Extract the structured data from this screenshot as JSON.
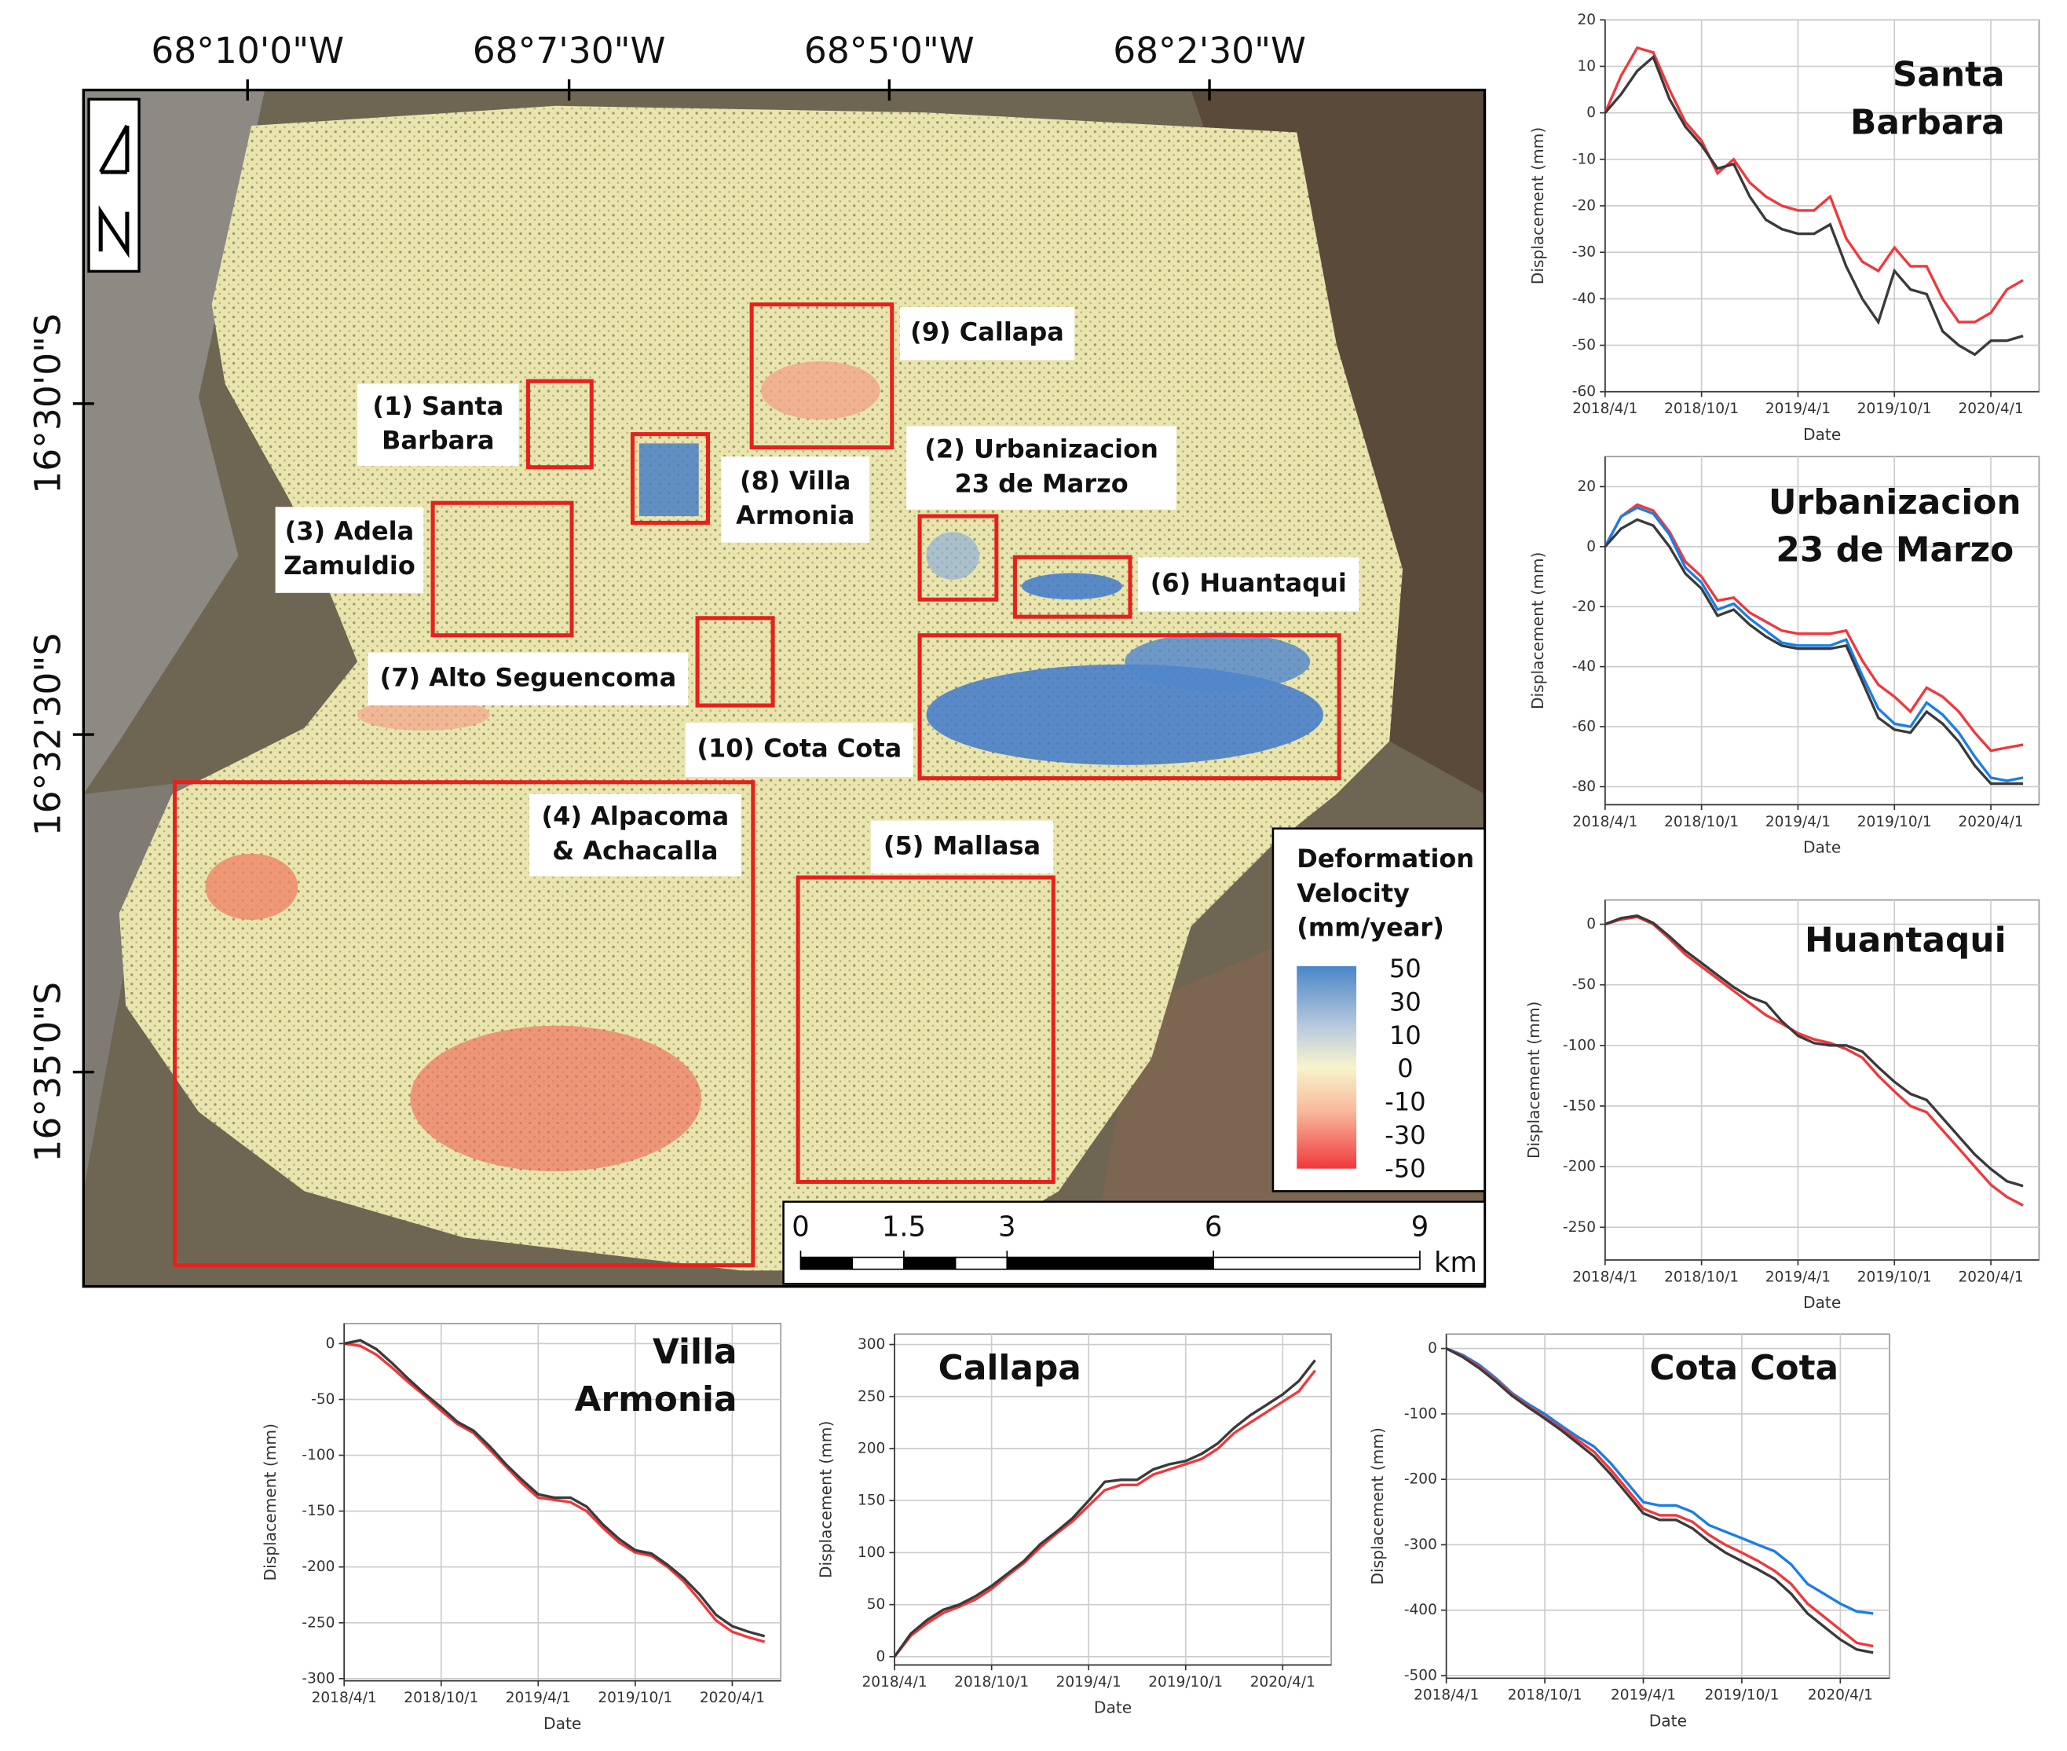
{
  "map": {
    "longitude_labels": [
      "68°10'0\"W",
      "68°7'30\"W",
      "68°5'0\"W",
      "68°2'30\"W"
    ],
    "latitude_labels": [
      "16°30'0\"S",
      "16°32'30\"S",
      "16°35'0\"S"
    ],
    "areas": [
      {
        "label": [
          "(1) Santa",
          "Barbara"
        ]
      },
      {
        "label": [
          "(8) Villa",
          "Armonia"
        ]
      },
      {
        "label": [
          "(9) Callapa"
        ]
      },
      {
        "label": [
          "(2) Urbanizacion",
          "23 de Marzo"
        ]
      },
      {
        "label": [
          "(3) Adela",
          "Zamuldio"
        ]
      },
      {
        "label": [
          "(6) Huantaqui"
        ]
      },
      {
        "label": [
          "(7) Alto Seguencoma"
        ]
      },
      {
        "label": [
          "(10) Cota Cota"
        ]
      },
      {
        "label": [
          "(4) Alpacoma",
          "& Achacalla"
        ]
      },
      {
        "label": [
          "(5) Mallasa"
        ]
      }
    ],
    "legend": {
      "title": [
        "Deformation",
        "Velocity",
        "(mm/year)"
      ],
      "ticks": [
        50,
        30,
        10,
        0,
        -10,
        -30,
        -50
      ]
    },
    "scale_bar": {
      "ticks": [
        0,
        1.5,
        3,
        6,
        9
      ],
      "lim": [
        0,
        9
      ],
      "unit": "km"
    }
  },
  "chart_data": [
    {
      "type": "line",
      "title": [
        "Santa",
        "Barbara"
      ],
      "x_label": "Date",
      "y_label": "Displacement (mm)",
      "x": [
        "2018/4/1",
        "2018/5/1",
        "2018/6/1",
        "2018/7/1",
        "2018/8/1",
        "2018/9/1",
        "2018/10/1",
        "2018/11/1",
        "2018/12/1",
        "2019/1/1",
        "2019/2/1",
        "2019/3/1",
        "2019/4/1",
        "2019/5/1",
        "2019/6/1",
        "2019/7/1",
        "2019/8/1",
        "2019/9/1",
        "2019/10/1",
        "2019/11/1",
        "2019/12/1",
        "2020/1/1",
        "2020/2/1",
        "2020/3/1",
        "2020/4/1",
        "2020/5/1",
        "2020/6/1"
      ],
      "xlim": [
        "2018/4/1",
        "2020/7/1"
      ],
      "xticks": [
        "2018/4/1",
        "2018/10/1",
        "2019/4/1",
        "2019/10/1",
        "2020/4/1"
      ],
      "ylim": [
        -60,
        20
      ],
      "yticks": [
        -60,
        -50,
        -40,
        -30,
        -20,
        -10,
        0,
        10,
        20
      ],
      "grid": true,
      "series": [
        {
          "color": "#f0383c",
          "values": [
            0,
            8,
            14,
            13,
            5,
            -2,
            -6,
            -13,
            -10,
            -15,
            -18,
            -20,
            -21,
            -21,
            -18,
            -27,
            -32,
            -34,
            -29,
            -33,
            -33,
            -40,
            -45,
            -45,
            -43,
            -38,
            -36
          ]
        },
        {
          "color": "#3a3a3a",
          "values": [
            0,
            4,
            9,
            12,
            3,
            -3,
            -7,
            -12,
            -11,
            -18,
            -23,
            -25,
            -26,
            -26,
            -24,
            -33,
            -40,
            -45,
            -34,
            -38,
            -39,
            -47,
            -50,
            -52,
            -49,
            -49,
            -48
          ]
        }
      ]
    },
    {
      "type": "line",
      "title": [
        "Urbanizacion",
        "23 de Marzo"
      ],
      "x_label": "Date",
      "y_label": "Displacement (mm)",
      "x": [
        "2018/4/1",
        "2018/5/1",
        "2018/6/1",
        "2018/7/1",
        "2018/8/1",
        "2018/9/1",
        "2018/10/1",
        "2018/11/1",
        "2018/12/1",
        "2019/1/1",
        "2019/2/1",
        "2019/3/1",
        "2019/4/1",
        "2019/5/1",
        "2019/6/1",
        "2019/7/1",
        "2019/8/1",
        "2019/9/1",
        "2019/10/1",
        "2019/11/1",
        "2019/12/1",
        "2020/1/1",
        "2020/2/1",
        "2020/3/1",
        "2020/4/1",
        "2020/5/1",
        "2020/6/1"
      ],
      "xlim": [
        "2018/4/1",
        "2020/7/1"
      ],
      "xticks": [
        "2018/4/1",
        "2018/10/1",
        "2019/4/1",
        "2019/10/1",
        "2020/4/1"
      ],
      "ylim": [
        -86,
        30
      ],
      "yticks": [
        -80,
        -60,
        -40,
        -20,
        0,
        20
      ],
      "grid": true,
      "series": [
        {
          "color": "#f0383c",
          "values": [
            0,
            10,
            14,
            12,
            5,
            -5,
            -10,
            -18,
            -17,
            -22,
            -25,
            -28,
            -29,
            -29,
            -29,
            -28,
            -38,
            -46,
            -50,
            -55,
            -47,
            -50,
            -55,
            -62,
            -68,
            -67,
            -66
          ]
        },
        {
          "color": "#1a7ee6",
          "values": [
            0,
            10,
            13,
            11,
            4,
            -7,
            -12,
            -21,
            -19,
            -24,
            -28,
            -32,
            -33,
            -33,
            -33,
            -31,
            -43,
            -54,
            -59,
            -60,
            -52,
            -56,
            -62,
            -70,
            -77,
            -78,
            -77
          ]
        },
        {
          "color": "#3a3a3a",
          "values": [
            0,
            6,
            9,
            7,
            0,
            -9,
            -14,
            -23,
            -21,
            -26,
            -30,
            -33,
            -34,
            -34,
            -34,
            -33,
            -45,
            -57,
            -61,
            -62,
            -55,
            -59,
            -65,
            -73,
            -79,
            -79,
            -79
          ]
        }
      ]
    },
    {
      "type": "line",
      "title": [
        "Huantaqui"
      ],
      "x_label": "Date",
      "y_label": "Displacement (mm)",
      "x": [
        "2018/4/1",
        "2018/5/1",
        "2018/6/1",
        "2018/7/1",
        "2018/8/1",
        "2018/9/1",
        "2018/10/1",
        "2018/11/1",
        "2018/12/1",
        "2019/1/1",
        "2019/2/1",
        "2019/3/1",
        "2019/4/1",
        "2019/5/1",
        "2019/6/1",
        "2019/7/1",
        "2019/8/1",
        "2019/9/1",
        "2019/10/1",
        "2019/11/1",
        "2019/12/1",
        "2020/1/1",
        "2020/2/1",
        "2020/3/1",
        "2020/4/1",
        "2020/5/1",
        "2020/6/1"
      ],
      "xlim": [
        "2018/4/1",
        "2020/7/1"
      ],
      "xticks": [
        "2018/4/1",
        "2018/10/1",
        "2019/4/1",
        "2019/10/1",
        "2020/4/1"
      ],
      "ylim": [
        -277,
        20
      ],
      "yticks": [
        -250,
        -200,
        -150,
        -100,
        -50,
        0
      ],
      "grid": true,
      "series": [
        {
          "color": "#f0383c",
          "values": [
            0,
            4,
            6,
            0,
            -12,
            -25,
            -35,
            -45,
            -55,
            -65,
            -75,
            -82,
            -90,
            -95,
            -98,
            -103,
            -110,
            -125,
            -138,
            -150,
            -155,
            -170,
            -185,
            -200,
            -215,
            -225,
            -232
          ]
        },
        {
          "color": "#3a3a3a",
          "values": [
            0,
            5,
            7,
            1,
            -10,
            -22,
            -32,
            -42,
            -52,
            -60,
            -65,
            -80,
            -92,
            -98,
            -100,
            -100,
            -105,
            -118,
            -130,
            -140,
            -145,
            -160,
            -175,
            -190,
            -202,
            -212,
            -216
          ]
        }
      ]
    },
    {
      "type": "line",
      "title": [
        "Villa",
        "Armonia"
      ],
      "x_label": "Date",
      "y_label": "Displacement (mm)",
      "x": [
        "2018/4/1",
        "2018/5/1",
        "2018/6/1",
        "2018/7/1",
        "2018/8/1",
        "2018/9/1",
        "2018/10/1",
        "2018/11/1",
        "2018/12/1",
        "2019/1/1",
        "2019/2/1",
        "2019/3/1",
        "2019/4/1",
        "2019/5/1",
        "2019/6/1",
        "2019/7/1",
        "2019/8/1",
        "2019/9/1",
        "2019/10/1",
        "2019/11/1",
        "2019/12/1",
        "2020/1/1",
        "2020/2/1",
        "2020/3/1",
        "2020/4/1",
        "2020/5/1",
        "2020/6/1"
      ],
      "xlim": [
        "2018/4/1",
        "2020/7/1"
      ],
      "xticks": [
        "2018/4/1",
        "2018/10/1",
        "2019/4/1",
        "2019/10/1",
        "2020/4/1"
      ],
      "ylim": [
        -302,
        18
      ],
      "yticks": [
        -300,
        -250,
        -200,
        -150,
        -100,
        -50,
        0
      ],
      "grid": true,
      "series": [
        {
          "color": "#f0383c",
          "values": [
            0,
            -2,
            -10,
            -22,
            -35,
            -47,
            -60,
            -72,
            -80,
            -95,
            -110,
            -125,
            -138,
            -140,
            -142,
            -150,
            -165,
            -178,
            -187,
            -190,
            -200,
            -213,
            -230,
            -248,
            -258,
            -263,
            -267
          ]
        },
        {
          "color": "#3a3a3a",
          "values": [
            0,
            3,
            -5,
            -18,
            -32,
            -45,
            -57,
            -70,
            -78,
            -92,
            -108,
            -122,
            -135,
            -138,
            -138,
            -146,
            -162,
            -175,
            -185,
            -188,
            -198,
            -210,
            -225,
            -243,
            -253,
            -258,
            -262
          ]
        }
      ]
    },
    {
      "type": "line",
      "title": [
        "Callapa"
      ],
      "x_label": "Date",
      "y_label": "Displacement (mm)",
      "x": [
        "2018/4/1",
        "2018/5/1",
        "2018/6/1",
        "2018/7/1",
        "2018/8/1",
        "2018/9/1",
        "2018/10/1",
        "2018/11/1",
        "2018/12/1",
        "2019/1/1",
        "2019/2/1",
        "2019/3/1",
        "2019/4/1",
        "2019/5/1",
        "2019/6/1",
        "2019/7/1",
        "2019/8/1",
        "2019/9/1",
        "2019/10/1",
        "2019/11/1",
        "2019/12/1",
        "2020/1/1",
        "2020/2/1",
        "2020/3/1",
        "2020/4/1",
        "2020/5/1",
        "2020/6/1"
      ],
      "xlim": [
        "2018/4/1",
        "2020/7/1"
      ],
      "xticks": [
        "2018/4/1",
        "2018/10/1",
        "2019/4/1",
        "2019/10/1",
        "2020/4/1"
      ],
      "ylim": [
        -8,
        310
      ],
      "yticks": [
        0,
        50,
        100,
        150,
        200,
        250,
        300
      ],
      "grid": true,
      "series": [
        {
          "color": "#f0383c",
          "values": [
            0,
            20,
            32,
            42,
            48,
            55,
            65,
            78,
            90,
            105,
            118,
            130,
            145,
            160,
            165,
            165,
            175,
            180,
            185,
            190,
            200,
            215,
            225,
            235,
            245,
            255,
            275
          ]
        },
        {
          "color": "#3a3a3a",
          "values": [
            0,
            22,
            35,
            45,
            50,
            58,
            68,
            80,
            92,
            108,
            120,
            133,
            150,
            168,
            170,
            170,
            180,
            185,
            188,
            195,
            205,
            220,
            232,
            242,
            252,
            265,
            285
          ]
        }
      ]
    },
    {
      "type": "line",
      "title": [
        "Cota Cota"
      ],
      "x_label": "Date",
      "y_label": "Displacement (mm)",
      "x": [
        "2018/4/1",
        "2018/5/1",
        "2018/6/1",
        "2018/7/1",
        "2018/8/1",
        "2018/9/1",
        "2018/10/1",
        "2018/11/1",
        "2018/12/1",
        "2019/1/1",
        "2019/2/1",
        "2019/3/1",
        "2019/4/1",
        "2019/5/1",
        "2019/6/1",
        "2019/7/1",
        "2019/8/1",
        "2019/9/1",
        "2019/10/1",
        "2019/11/1",
        "2019/12/1",
        "2020/1/1",
        "2020/2/1",
        "2020/3/1",
        "2020/4/1",
        "2020/5/1",
        "2020/6/1"
      ],
      "xlim": [
        "2018/4/1",
        "2020/7/1"
      ],
      "xticks": [
        "2018/4/1",
        "2018/10/1",
        "2019/4/1",
        "2019/10/1",
        "2020/4/1"
      ],
      "ylim": [
        -504,
        22
      ],
      "yticks": [
        -500,
        -400,
        -300,
        -200,
        -100,
        0
      ],
      "grid": true,
      "series": [
        {
          "color": "#1a7ee6",
          "values": [
            0,
            -10,
            -25,
            -45,
            -68,
            -85,
            -100,
            -118,
            -135,
            -150,
            -175,
            -205,
            -235,
            -240,
            -240,
            -250,
            -270,
            -280,
            -290,
            -300,
            -310,
            -330,
            -360,
            -375,
            -390,
            -402,
            -405
          ]
        },
        {
          "color": "#f0383c",
          "values": [
            0,
            -12,
            -28,
            -48,
            -70,
            -88,
            -105,
            -122,
            -140,
            -158,
            -185,
            -215,
            -245,
            -255,
            -255,
            -265,
            -285,
            -300,
            -312,
            -325,
            -340,
            -360,
            -390,
            -410,
            -430,
            -450,
            -455
          ]
        },
        {
          "color": "#3a3a3a",
          "values": [
            0,
            -13,
            -30,
            -50,
            -72,
            -90,
            -107,
            -125,
            -145,
            -165,
            -192,
            -222,
            -252,
            -262,
            -262,
            -275,
            -295,
            -312,
            -325,
            -338,
            -352,
            -375,
            -405,
            -425,
            -445,
            -460,
            -465
          ]
        }
      ]
    }
  ]
}
